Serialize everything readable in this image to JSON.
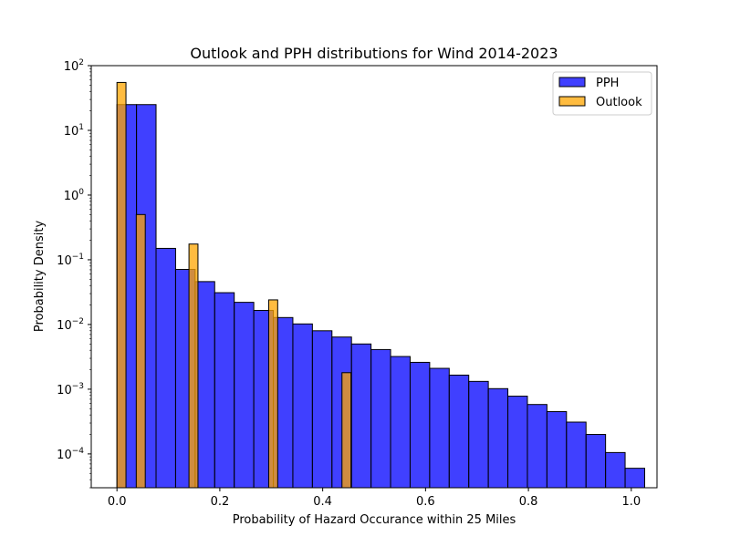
{
  "chart_data": {
    "type": "bar",
    "title": "Outlook and PPH distributions for Wind 2014-2023",
    "xlabel": "Probability of Hazard Occurance within 25 Miles",
    "ylabel": "Probability Density",
    "yscale": "log",
    "xlim": [
      -0.05,
      1.05
    ],
    "ylim": [
      3e-05,
      100
    ],
    "xticks": [
      0.0,
      0.2,
      0.4,
      0.6,
      0.8,
      1.0
    ],
    "xtick_labels": [
      "0.0",
      "0.2",
      "0.4",
      "0.6",
      "0.8",
      "1.0"
    ],
    "yticks": [
      0.0001,
      0.001,
      0.01,
      0.1,
      1,
      10,
      100
    ],
    "ytick_labels": [
      {
        "base": "10",
        "exp": "−4"
      },
      {
        "base": "10",
        "exp": "−3"
      },
      {
        "base": "10",
        "exp": "−2"
      },
      {
        "base": "10",
        "exp": "−1"
      },
      {
        "base": "10",
        "exp": "0"
      },
      {
        "base": "10",
        "exp": "1"
      },
      {
        "base": "10",
        "exp": "2"
      }
    ],
    "legend_position": "top-right",
    "grid": false,
    "series": [
      {
        "name": "PPH",
        "color": "#0000ff",
        "alpha": 0.75,
        "bin_width": 0.038,
        "bins": [
          {
            "x": 0.0,
            "value": 25
          },
          {
            "x": 0.038,
            "value": 25
          },
          {
            "x": 0.076,
            "value": 0.15
          },
          {
            "x": 0.114,
            "value": 0.071
          },
          {
            "x": 0.152,
            "value": 0.046
          },
          {
            "x": 0.19,
            "value": 0.031
          },
          {
            "x": 0.228,
            "value": 0.022
          },
          {
            "x": 0.266,
            "value": 0.0165
          },
          {
            "x": 0.304,
            "value": 0.0128
          },
          {
            "x": 0.342,
            "value": 0.0102
          },
          {
            "x": 0.38,
            "value": 0.008
          },
          {
            "x": 0.418,
            "value": 0.0064
          },
          {
            "x": 0.456,
            "value": 0.005
          },
          {
            "x": 0.494,
            "value": 0.0041
          },
          {
            "x": 0.532,
            "value": 0.0032
          },
          {
            "x": 0.57,
            "value": 0.0026
          },
          {
            "x": 0.608,
            "value": 0.0021
          },
          {
            "x": 0.646,
            "value": 0.00165
          },
          {
            "x": 0.684,
            "value": 0.00132
          },
          {
            "x": 0.722,
            "value": 0.00102
          },
          {
            "x": 0.76,
            "value": 0.00078
          },
          {
            "x": 0.798,
            "value": 0.00058
          },
          {
            "x": 0.836,
            "value": 0.00045
          },
          {
            "x": 0.874,
            "value": 0.00031
          },
          {
            "x": 0.912,
            "value": 0.0002
          },
          {
            "x": 0.95,
            "value": 0.000105
          },
          {
            "x": 0.988,
            "value": 6e-05
          }
        ]
      },
      {
        "name": "Outlook",
        "color": "#ffa500",
        "alpha": 0.75,
        "bin_width": 0.0175,
        "bins": [
          {
            "x": 0.0,
            "value": 55
          },
          {
            "x": 0.0375,
            "value": 0.5
          },
          {
            "x": 0.14,
            "value": 0.175
          },
          {
            "x": 0.295,
            "value": 0.024
          },
          {
            "x": 0.4375,
            "value": 0.0018
          }
        ]
      }
    ]
  }
}
